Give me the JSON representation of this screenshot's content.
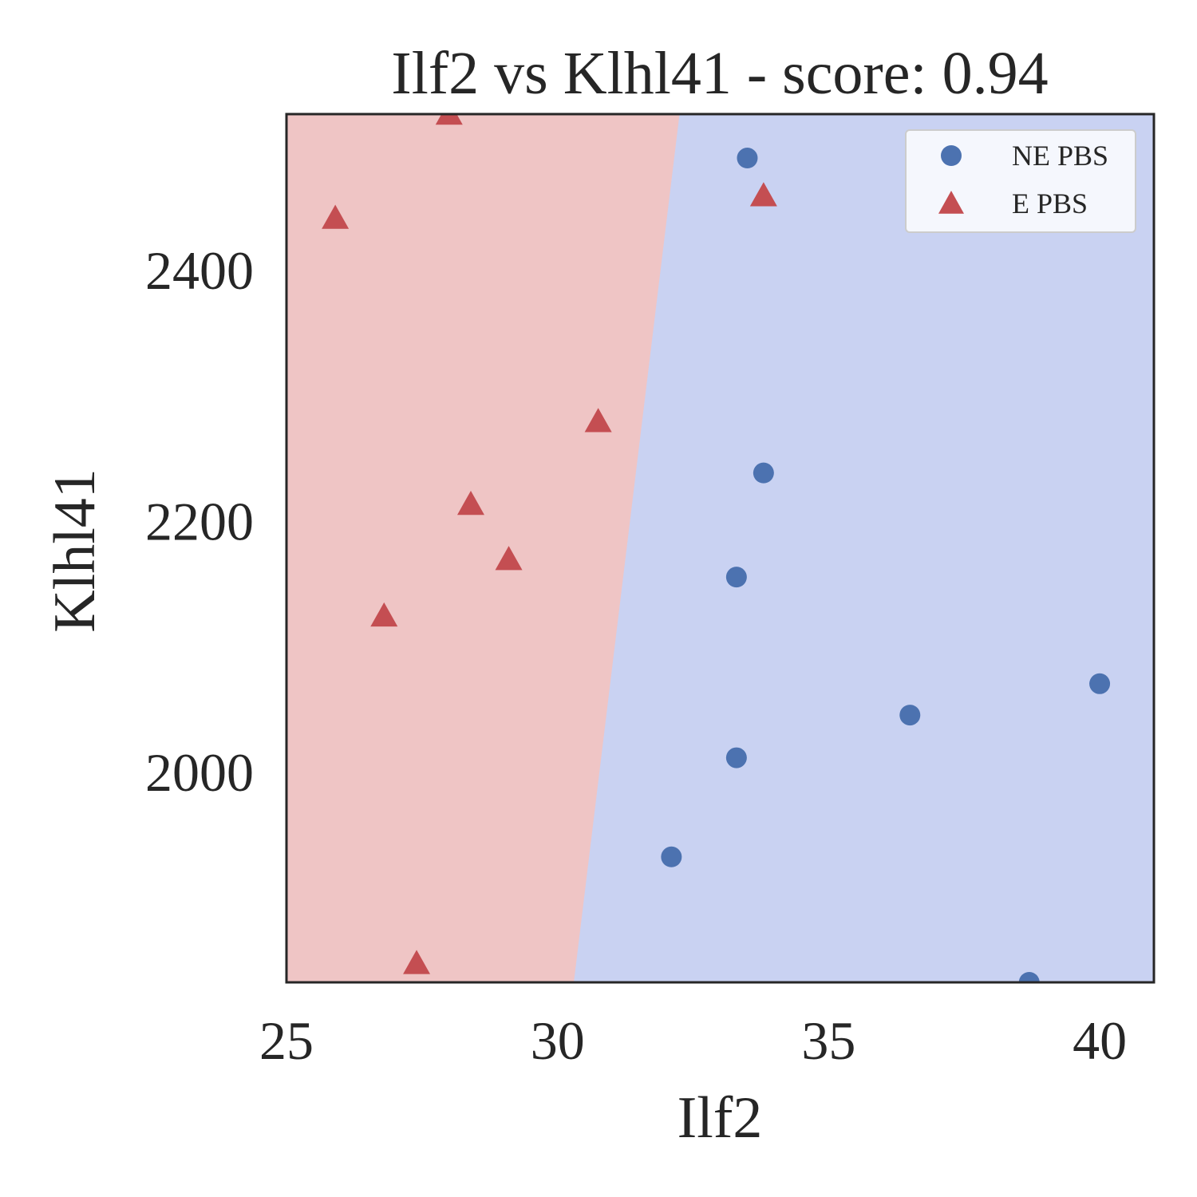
{
  "chart_data": {
    "type": "scatter",
    "title": "Ilf2 vs Klhl41 - score: 0.94",
    "xlabel": "Ilf2",
    "ylabel": "Klhl41",
    "xlim": [
      25,
      41
    ],
    "ylim": [
      1832,
      2524
    ],
    "xticks": [
      25,
      30,
      35,
      40
    ],
    "yticks": [
      2000,
      2200,
      2400
    ],
    "grid": false,
    "legend_position": "top-right",
    "decision_boundary": {
      "points": [
        [
          30.3,
          1832
        ],
        [
          32.25,
          2524
        ]
      ],
      "left_color": "#efc5c5",
      "right_color": "#c9d2f2"
    },
    "series": [
      {
        "name": "NE PBS",
        "marker": "circle",
        "color": "#4c72b0",
        "points": [
          [
            33.5,
            2489
          ],
          [
            33.8,
            2238
          ],
          [
            33.3,
            2155
          ],
          [
            36.5,
            2045
          ],
          [
            40.0,
            2070
          ],
          [
            33.3,
            2011
          ],
          [
            32.1,
            1932
          ],
          [
            38.7,
            1832
          ]
        ]
      },
      {
        "name": "E PBS",
        "marker": "triangle",
        "color": "#c44e52",
        "points": [
          [
            28.0,
            2524
          ],
          [
            25.9,
            2441
          ],
          [
            33.8,
            2459
          ],
          [
            30.75,
            2279
          ],
          [
            28.4,
            2213
          ],
          [
            29.1,
            2169
          ],
          [
            26.8,
            2124
          ],
          [
            27.4,
            1847
          ]
        ]
      }
    ]
  }
}
